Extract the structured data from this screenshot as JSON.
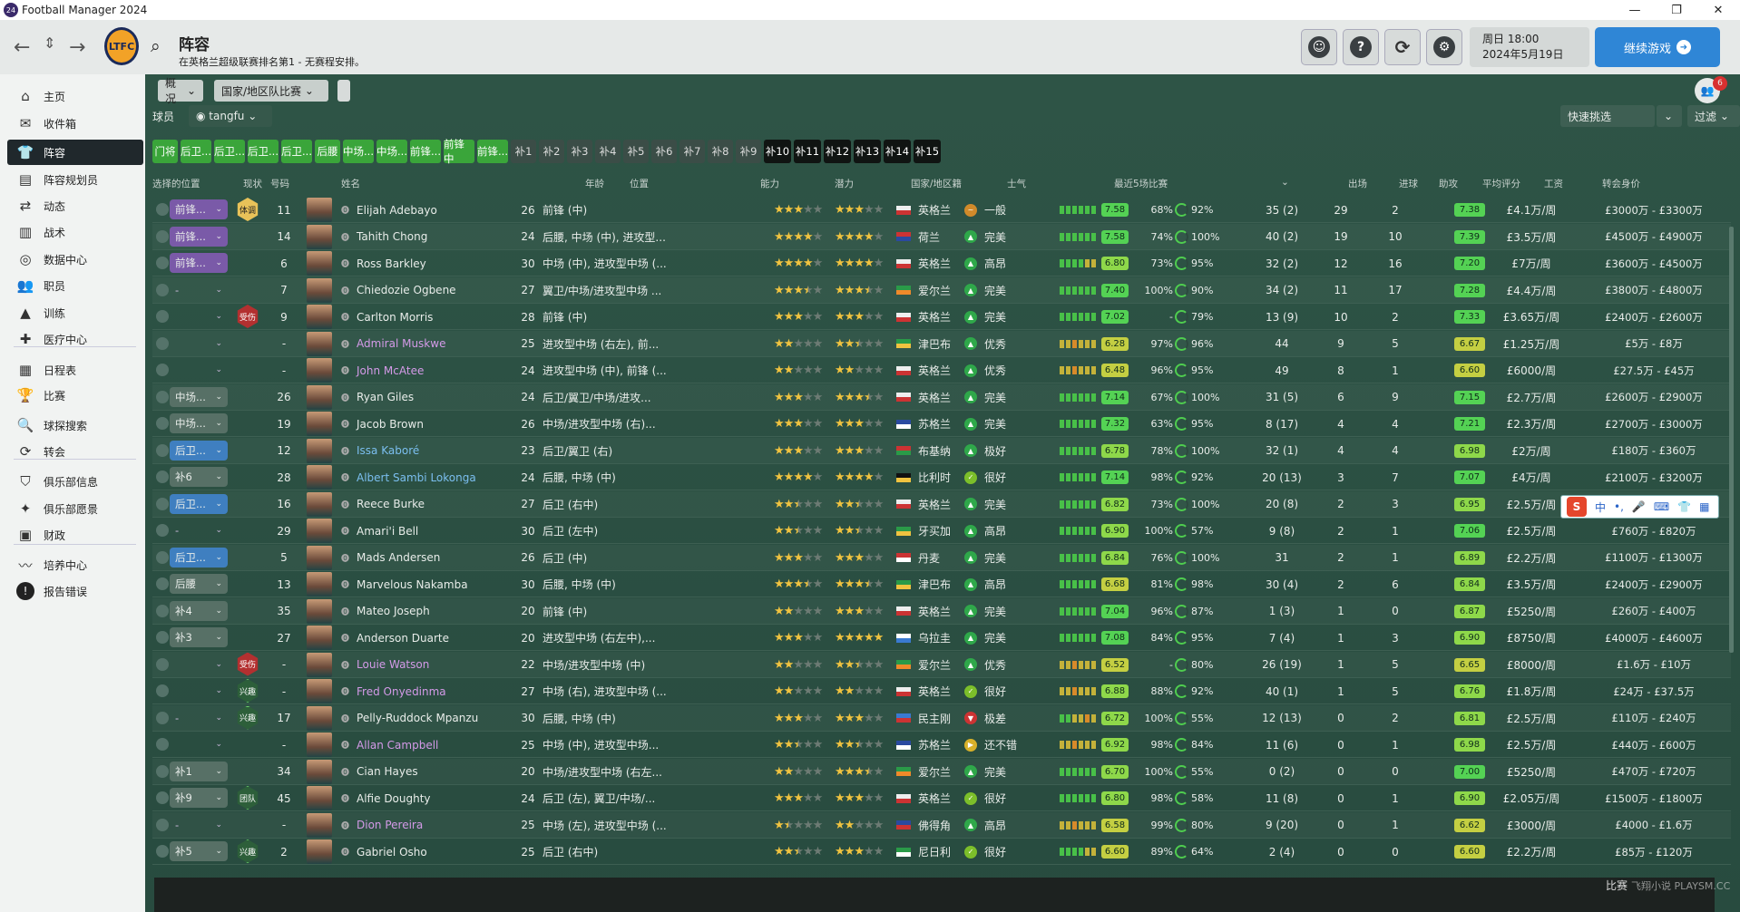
{
  "window": {
    "title": "Football Manager 2024",
    "logo": "24"
  },
  "header": {
    "title": "阵容",
    "subtitle": "在英格兰超级联赛排名第1 - 无赛程安排。",
    "day_time": "周日 18:00",
    "date": "2024年5月19日",
    "continue_label": "继续游戏",
    "club_crest": "LTFC"
  },
  "sidebar": [
    {
      "label": "主页",
      "icon": "home-icon",
      "glyph": "⌂"
    },
    {
      "label": "收件箱",
      "icon": "inbox-icon",
      "glyph": "✉"
    },
    {
      "label": "阵容",
      "icon": "shirt-icon",
      "glyph": "👕"
    },
    {
      "label": "阵容规划员",
      "icon": "planner-icon",
      "glyph": "▤"
    },
    {
      "label": "动态",
      "icon": "dynamics-icon",
      "glyph": "⇄"
    },
    {
      "label": "战术",
      "icon": "tactics-icon",
      "glyph": "▥"
    },
    {
      "label": "数据中心",
      "icon": "data-hub-icon",
      "glyph": "◎"
    },
    {
      "label": "职员",
      "icon": "staff-icon",
      "glyph": "👥"
    },
    {
      "label": "训练",
      "icon": "training-icon",
      "glyph": "▲"
    },
    {
      "label": "医疗中心",
      "icon": "medical-icon",
      "glyph": "✚"
    },
    {
      "label": "日程表",
      "icon": "calendar-icon",
      "glyph": "▦"
    },
    {
      "label": "比赛",
      "icon": "trophy-icon",
      "glyph": "🏆"
    },
    {
      "label": "球探搜索",
      "icon": "scouting-icon",
      "glyph": "🔍"
    },
    {
      "label": "转会",
      "icon": "transfers-icon",
      "glyph": "⟳"
    },
    {
      "label": "俱乐部信息",
      "icon": "club-info-icon",
      "glyph": "⛉"
    },
    {
      "label": "俱乐部愿景",
      "icon": "club-vision-icon",
      "glyph": "✦"
    },
    {
      "label": "财政",
      "icon": "finance-icon",
      "glyph": "▣"
    },
    {
      "label": "培养中心",
      "icon": "development-icon",
      "glyph": "〰"
    },
    {
      "label": "报告错误",
      "icon": "report-bug-icon",
      "glyph": "!"
    }
  ],
  "toolbar": {
    "view": "概况",
    "competition": "国家/地区队比赛",
    "players_label": "球员",
    "user": "tangfu",
    "quick_pick": "快速挑选",
    "filter": "过滤",
    "notification_count": "6"
  },
  "filters": [
    {
      "label": "门将",
      "style": "g"
    },
    {
      "label": "后卫...",
      "style": "g"
    },
    {
      "label": "后卫...",
      "style": "g"
    },
    {
      "label": "后卫...",
      "style": "g"
    },
    {
      "label": "后卫...",
      "style": "g"
    },
    {
      "label": "后腰",
      "style": "g"
    },
    {
      "label": "中场...",
      "style": "g"
    },
    {
      "label": "中场...",
      "style": "g"
    },
    {
      "label": "前锋...",
      "style": "g"
    },
    {
      "label": "前锋中",
      "style": "g"
    },
    {
      "label": "前锋...",
      "style": "g"
    },
    {
      "label": "补1",
      "style": "d"
    },
    {
      "label": "补2",
      "style": "d"
    },
    {
      "label": "补3",
      "style": "d"
    },
    {
      "label": "补4",
      "style": "d"
    },
    {
      "label": "补5",
      "style": "d"
    },
    {
      "label": "补6",
      "style": "d"
    },
    {
      "label": "补7",
      "style": "d"
    },
    {
      "label": "补8",
      "style": "d"
    },
    {
      "label": "补9",
      "style": "d"
    },
    {
      "label": "补10",
      "style": "b"
    },
    {
      "label": "补11",
      "style": "b"
    },
    {
      "label": "补12",
      "style": "b"
    },
    {
      "label": "补13",
      "style": "b"
    },
    {
      "label": "补14",
      "style": "b"
    },
    {
      "label": "补15",
      "style": "b"
    }
  ],
  "columns": {
    "sel": "选择的位置",
    "status": "现状",
    "num": "号码",
    "name": "姓名",
    "age": "年龄",
    "position": "位置",
    "ability": "能力",
    "potential": "潜力",
    "nation": "国家/地区籍",
    "morale": "士气",
    "form": "最近5场比赛",
    "apps": "出场",
    "goals": "进球",
    "assists": "助攻",
    "avg": "平均评分",
    "wage": "工资",
    "value": "转会身价"
  },
  "players": [
    {
      "sel": "前锋...",
      "selc": "purple",
      "status": "体调",
      "stc": "fit",
      "num": "11",
      "name": "Elijah Adebayo",
      "nc": "",
      "age": "26",
      "pos": "前锋 (中)",
      "ab": 3,
      "pot": 3,
      "nat": "英格兰",
      "f1": "#eee",
      "f2": "#c33",
      "mor": "一般",
      "mc": "#d18a2a",
      "mi": "~",
      "form": "gggggg",
      "r": "7.58",
      "share": "68%",
      "pc": "92%",
      "apps": "35 (2)",
      "gls": "29",
      "ast": "2",
      "avg": "7.38",
      "wage": "£4.1万/周",
      "val": "£3000万 - £3300万"
    },
    {
      "sel": "前锋...",
      "selc": "purple",
      "status": "",
      "stc": "",
      "num": "14",
      "name": "Tahith Chong",
      "nc": "",
      "age": "24",
      "pos": "后腰, 中场 (中), 进攻型...",
      "ab": 4,
      "pot": 4,
      "nat": "荷兰",
      "f1": "#c33",
      "f2": "#2a4aa0",
      "mor": "完美",
      "mc": "#2fa84a",
      "mi": "▲",
      "form": "gggggg",
      "r": "7.58",
      "share": "74%",
      "pc": "100%",
      "apps": "40 (2)",
      "gls": "19",
      "ast": "10",
      "avg": "7.39",
      "wage": "£3.5万/周",
      "val": "£4500万 - £4900万"
    },
    {
      "sel": "前锋...",
      "selc": "purple",
      "status": "",
      "stc": "",
      "num": "6",
      "name": "Ross Barkley",
      "nc": "",
      "age": "30",
      "pos": "中场 (中), 进攻型中场 (...",
      "ab": 4,
      "pot": 4,
      "nat": "英格兰",
      "f1": "#eee",
      "f2": "#c33",
      "mor": "高昂",
      "mc": "#2fa84a",
      "mi": "▲",
      "form": "ggggyy",
      "r": "6.80",
      "share": "73%",
      "pc": "95%",
      "apps": "32 (2)",
      "gls": "12",
      "ast": "16",
      "avg": "7.20",
      "wage": "£7万/周",
      "val": "£3600万 - £4500万"
    },
    {
      "sel": "-",
      "selc": "none",
      "status": "",
      "stc": "",
      "num": "7",
      "name": "Chiedozie Ogbene",
      "nc": "",
      "age": "27",
      "pos": "翼卫/中场/进攻型中场 ...",
      "ab": 3.5,
      "pot": 3.5,
      "nat": "爱尔兰",
      "f1": "#2a9a48",
      "f2": "#f08a2a",
      "mor": "完美",
      "mc": "#2fa84a",
      "mi": "▲",
      "form": "gggggg",
      "r": "7.40",
      "share": "100%",
      "pc": "90%",
      "apps": "34 (2)",
      "gls": "11",
      "ast": "17",
      "avg": "7.28",
      "wage": "£4.4万/周",
      "val": "£3800万 - £4800万"
    },
    {
      "sel": "",
      "selc": "none",
      "status": "受伤",
      "stc": "inj",
      "num": "9",
      "name": "Carlton Morris",
      "nc": "",
      "age": "28",
      "pos": "前锋 (中)",
      "ab": 3,
      "pot": 3,
      "nat": "英格兰",
      "f1": "#eee",
      "f2": "#c33",
      "mor": "完美",
      "mc": "#2fa84a",
      "mi": "▲",
      "form": "gggggg",
      "r": "7.02",
      "share": "-",
      "pc": "79%",
      "apps": "13 (9)",
      "gls": "10",
      "ast": "2",
      "avg": "7.33",
      "wage": "£3.65万/周",
      "val": "£2400万 - £2600万"
    },
    {
      "sel": "",
      "selc": "none",
      "status": "",
      "stc": "",
      "num": "-",
      "name": "Admiral Muskwe",
      "nc": "loan",
      "age": "25",
      "pos": "进攻型中场 (右左), 前...",
      "ab": 2,
      "pot": 2.5,
      "nat": "津巴布",
      "f1": "#2a9a48",
      "f2": "#f0c340",
      "mor": "优秀",
      "mc": "#2fa84a",
      "mi": "▲",
      "form": "yyoyyy",
      "r": "6.28",
      "share": "97%",
      "pc": "96%",
      "apps": "44",
      "gls": "9",
      "ast": "5",
      "avg": "6.67",
      "wage": "£1.25万/周",
      "val": "£5万 - £8万"
    },
    {
      "sel": "",
      "selc": "none",
      "status": "",
      "stc": "",
      "num": "-",
      "name": "John McAtee",
      "nc": "loan",
      "age": "24",
      "pos": "进攻型中场 (中), 前锋 (...",
      "ab": 2,
      "pot": 2,
      "nat": "英格兰",
      "f1": "#eee",
      "f2": "#c33",
      "mor": "优秀",
      "mc": "#2fa84a",
      "mi": "▲",
      "form": "yyoyyy",
      "r": "6.48",
      "share": "96%",
      "pc": "95%",
      "apps": "49",
      "gls": "8",
      "ast": "1",
      "avg": "6.60",
      "wage": "£6000/周",
      "val": "£27.5万 - £45万"
    },
    {
      "sel": "中场...",
      "selc": "sub",
      "status": "",
      "stc": "",
      "num": "26",
      "name": "Ryan Giles",
      "nc": "",
      "age": "24",
      "pos": "后卫/翼卫/中场/进攻...",
      "ab": 3,
      "pot": 3.5,
      "nat": "英格兰",
      "f1": "#eee",
      "f2": "#c33",
      "mor": "完美",
      "mc": "#2fa84a",
      "mi": "▲",
      "form": "gggggg",
      "r": "7.14",
      "share": "67%",
      "pc": "100%",
      "apps": "31 (5)",
      "gls": "6",
      "ast": "9",
      "avg": "7.15",
      "wage": "£2.7万/周",
      "val": "£2600万 - £2900万"
    },
    {
      "sel": "中场...",
      "selc": "sub",
      "status": "",
      "stc": "",
      "num": "19",
      "name": "Jacob Brown",
      "nc": "",
      "age": "26",
      "pos": "中场/进攻型中场 (右)...",
      "ab": 3,
      "pot": 3,
      "nat": "苏格兰",
      "f1": "#2a4aa0",
      "f2": "#fff",
      "mor": "完美",
      "mc": "#2fa84a",
      "mi": "▲",
      "form": "gggggg",
      "r": "7.32",
      "share": "63%",
      "pc": "95%",
      "apps": "8 (17)",
      "gls": "4",
      "ast": "4",
      "avg": "7.21",
      "wage": "£2.3万/周",
      "val": "£2700万 - £3000万"
    },
    {
      "sel": "后卫...",
      "selc": "blue",
      "status": "",
      "stc": "",
      "num": "12",
      "name": "Issa Kaboré",
      "nc": "blue",
      "age": "23",
      "pos": "后卫/翼卫 (右)",
      "ab": 3,
      "pot": 3,
      "nat": "布基纳",
      "f1": "#c33",
      "f2": "#2a9a48",
      "mor": "极好",
      "mc": "#2fa84a",
      "mi": "▲",
      "form": "gggggg",
      "r": "6.78",
      "share": "78%",
      "pc": "100%",
      "apps": "32 (1)",
      "gls": "4",
      "ast": "4",
      "avg": "6.98",
      "wage": "£2万/周",
      "val": "£180万 - £360万"
    },
    {
      "sel": "补6",
      "selc": "sub",
      "status": "",
      "stc": "",
      "num": "28",
      "name": "Albert Sambi Lokonga",
      "nc": "blue",
      "age": "24",
      "pos": "后腰, 中场 (中)",
      "ab": 4,
      "pot": 4,
      "nat": "比利时",
      "f1": "#111",
      "f2": "#f0c340",
      "mor": "很好",
      "mc": "#7cbf2a",
      "mi": "✓",
      "form": "gggggg",
      "r": "7.14",
      "share": "98%",
      "pc": "92%",
      "apps": "20 (13)",
      "gls": "3",
      "ast": "7",
      "avg": "7.07",
      "wage": "£4万/周",
      "val": "£2100万 - £3200万"
    },
    {
      "sel": "后卫...",
      "selc": "blue",
      "status": "",
      "stc": "",
      "num": "16",
      "name": "Reece Burke",
      "nc": "",
      "age": "27",
      "pos": "后卫 (右中)",
      "ab": 2.5,
      "pot": 2.5,
      "nat": "英格兰",
      "f1": "#eee",
      "f2": "#c33",
      "mor": "完美",
      "mc": "#2fa84a",
      "mi": "▲",
      "form": "gggggg",
      "r": "6.82",
      "share": "73%",
      "pc": "100%",
      "apps": "20 (8)",
      "gls": "2",
      "ast": "3",
      "avg": "6.95",
      "wage": "£2.5万/周",
      "val": ""
    },
    {
      "sel": "-",
      "selc": "none",
      "status": "",
      "stc": "",
      "num": "29",
      "name": "Amari'i Bell",
      "nc": "",
      "age": "30",
      "pos": "后卫 (左中)",
      "ab": 2.5,
      "pot": 2.5,
      "nat": "牙买加",
      "f1": "#2a9a48",
      "f2": "#f0c340",
      "mor": "高昂",
      "mc": "#2fa84a",
      "mi": "▲",
      "form": "gggggg",
      "r": "6.90",
      "share": "100%",
      "pc": "57%",
      "apps": "9 (8)",
      "gls": "2",
      "ast": "1",
      "avg": "7.06",
      "wage": "£2.5万/周",
      "val": "£760万 - £820万"
    },
    {
      "sel": "后卫...",
      "selc": "blue",
      "status": "",
      "stc": "",
      "num": "5",
      "name": "Mads Andersen",
      "nc": "",
      "age": "26",
      "pos": "后卫 (中)",
      "ab": 3,
      "pot": 3,
      "nat": "丹麦",
      "f1": "#c33",
      "f2": "#fff",
      "mor": "完美",
      "mc": "#2fa84a",
      "mi": "▲",
      "form": "gggggg",
      "r": "6.84",
      "share": "76%",
      "pc": "100%",
      "apps": "31",
      "gls": "2",
      "ast": "1",
      "avg": "6.89",
      "wage": "£2.2万/周",
      "val": "£1100万 - £1300万"
    },
    {
      "sel": "后腰",
      "selc": "sub",
      "status": "",
      "stc": "",
      "num": "13",
      "name": "Marvelous Nakamba",
      "nc": "",
      "age": "30",
      "pos": "后腰, 中场 (中)",
      "ab": 3.5,
      "pot": 3.5,
      "nat": "津巴布",
      "f1": "#2a9a48",
      "f2": "#f0c340",
      "mor": "高昂",
      "mc": "#2fa84a",
      "mi": "▲",
      "form": "gggggg",
      "r": "6.68",
      "share": "81%",
      "pc": "98%",
      "apps": "30 (4)",
      "gls": "2",
      "ast": "6",
      "avg": "6.84",
      "wage": "£3.5万/周",
      "val": "£2400万 - £2900万"
    },
    {
      "sel": "补4",
      "selc": "sub",
      "status": "",
      "stc": "",
      "num": "35",
      "name": "Mateo Joseph",
      "nc": "",
      "age": "20",
      "pos": "前锋 (中)",
      "ab": 2,
      "pot": 3,
      "nat": "英格兰",
      "f1": "#eee",
      "f2": "#c33",
      "mor": "完美",
      "mc": "#2fa84a",
      "mi": "▲",
      "form": "gggggg",
      "r": "7.04",
      "share": "96%",
      "pc": "87%",
      "apps": "1 (3)",
      "gls": "1",
      "ast": "0",
      "avg": "6.87",
      "wage": "£5250/周",
      "val": "£260万 - £400万"
    },
    {
      "sel": "补3",
      "selc": "sub",
      "status": "",
      "stc": "",
      "num": "27",
      "name": "Anderson Duarte",
      "nc": "",
      "age": "20",
      "pos": "进攻型中场 (右左中),...",
      "ab": 3,
      "pot": 5,
      "nat": "乌拉圭",
      "f1": "#fff",
      "f2": "#3a7ad0",
      "mor": "完美",
      "mc": "#2fa84a",
      "mi": "▲",
      "form": "gggggg",
      "r": "7.08",
      "share": "84%",
      "pc": "95%",
      "apps": "7 (4)",
      "gls": "1",
      "ast": "3",
      "avg": "6.90",
      "wage": "£8750/周",
      "val": "£4000万 - £4600万"
    },
    {
      "sel": "",
      "selc": "none",
      "status": "受伤",
      "stc": "inj",
      "num": "-",
      "name": "Louie Watson",
      "nc": "loan",
      "age": "22",
      "pos": "中场/进攻型中场 (中)",
      "ab": 2,
      "pot": 2.5,
      "nat": "爱尔兰",
      "f1": "#2a9a48",
      "f2": "#f08a2a",
      "mor": "优秀",
      "mc": "#2fa84a",
      "mi": "▲",
      "form": "yyoyyy",
      "r": "6.52",
      "share": "-",
      "pc": "80%",
      "apps": "26 (19)",
      "gls": "1",
      "ast": "5",
      "avg": "6.65",
      "wage": "£8000/周",
      "val": "£1.6万 - £10万"
    },
    {
      "sel": "",
      "selc": "none",
      "status": "兴趣",
      "stc": "happy",
      "num": "-",
      "name": "Fred Onyedinma",
      "nc": "loan",
      "age": "27",
      "pos": "中场 (右), 进攻型中场 (...",
      "ab": 2,
      "pot": 2,
      "nat": "英格兰",
      "f1": "#eee",
      "f2": "#c33",
      "mor": "很好",
      "mc": "#7cbf2a",
      "mi": "✓",
      "form": "yyoyyy",
      "r": "6.88",
      "share": "88%",
      "pc": "92%",
      "apps": "40 (1)",
      "gls": "1",
      "ast": "5",
      "avg": "6.76",
      "wage": "£1.8万/周",
      "val": "£24万 - £37.5万"
    },
    {
      "sel": "-",
      "selc": "none",
      "status": "兴趣",
      "stc": "happy",
      "num": "17",
      "name": "Pelly-Ruddock Mpanzu",
      "nc": "",
      "age": "30",
      "pos": "后腰, 中场 (中)",
      "ab": 3,
      "pot": 3,
      "nat": "民主刚",
      "f1": "#3a7ad0",
      "f2": "#c33",
      "mor": "极差",
      "mc": "#c33",
      "mi": "▼",
      "form": "ggyyoy",
      "r": "6.72",
      "share": "100%",
      "pc": "55%",
      "apps": "12 (13)",
      "gls": "0",
      "ast": "2",
      "avg": "6.81",
      "wage": "£2.5万/周",
      "val": "£110万 - £240万"
    },
    {
      "sel": "",
      "selc": "none",
      "status": "",
      "stc": "",
      "num": "-",
      "name": "Allan Campbell",
      "nc": "loan",
      "age": "25",
      "pos": "中场 (中), 进攻型中场...",
      "ab": 2.5,
      "pot": 2.5,
      "nat": "苏格兰",
      "f1": "#2a4aa0",
      "f2": "#fff",
      "mor": "还不错",
      "mc": "#d8b12a",
      "mi": "▶",
      "form": "yyoyyy",
      "r": "6.92",
      "share": "98%",
      "pc": "84%",
      "apps": "11 (6)",
      "gls": "0",
      "ast": "1",
      "avg": "6.98",
      "wage": "£2.5万/周",
      "val": "£440万 - £600万"
    },
    {
      "sel": "补1",
      "selc": "sub",
      "status": "",
      "stc": "",
      "num": "34",
      "name": "Cian Hayes",
      "nc": "",
      "age": "20",
      "pos": "中场/进攻型中场 (右左...",
      "ab": 2,
      "pot": 3.5,
      "nat": "爱尔兰",
      "f1": "#2a9a48",
      "f2": "#f08a2a",
      "mor": "完美",
      "mc": "#2fa84a",
      "mi": "▲",
      "form": "gggggg",
      "r": "6.70",
      "share": "100%",
      "pc": "55%",
      "apps": "0 (2)",
      "gls": "0",
      "ast": "0",
      "avg": "7.00",
      "wage": "£5250/周",
      "val": "£470万 - £720万"
    },
    {
      "sel": "补9",
      "selc": "sub",
      "status": "团队",
      "stc": "happy",
      "num": "45",
      "name": "Alfie Doughty",
      "nc": "",
      "age": "24",
      "pos": "后卫 (左), 翼卫/中场/...",
      "ab": 3,
      "pot": 3,
      "nat": "英格兰",
      "f1": "#eee",
      "f2": "#c33",
      "mor": "很好",
      "mc": "#7cbf2a",
      "mi": "✓",
      "form": "gggggg",
      "r": "6.80",
      "share": "98%",
      "pc": "58%",
      "apps": "11 (8)",
      "gls": "0",
      "ast": "1",
      "avg": "6.90",
      "wage": "£2.05万/周",
      "val": "£1500万 - £1800万"
    },
    {
      "sel": "-",
      "selc": "none",
      "status": "",
      "stc": "",
      "num": "-",
      "name": "Dion Pereira",
      "nc": "loan",
      "age": "25",
      "pos": "中场 (左), 进攻型中场 (...",
      "ab": 1.5,
      "pot": 2,
      "nat": "佛得角",
      "f1": "#2a4aa0",
      "f2": "#c33",
      "mor": "高昂",
      "mc": "#2fa84a",
      "mi": "▲",
      "form": "yyoyyy",
      "r": "6.58",
      "share": "99%",
      "pc": "80%",
      "apps": "9 (20)",
      "gls": "0",
      "ast": "1",
      "avg": "6.62",
      "wage": "£3000/周",
      "val": "£4000 - £1.6万"
    },
    {
      "sel": "补5",
      "selc": "sub",
      "status": "兴趣",
      "stc": "happy",
      "num": "2",
      "name": "Gabriel Osho",
      "nc": "",
      "age": "25",
      "pos": "后卫 (右中)",
      "ab": 2.5,
      "pot": 3,
      "nat": "尼日利",
      "f1": "#2a9a48",
      "f2": "#fff",
      "mor": "很好",
      "mc": "#7cbf2a",
      "mi": "✓",
      "form": "ggggyy",
      "r": "6.60",
      "share": "89%",
      "pc": "64%",
      "apps": "2 (4)",
      "gls": "0",
      "ast": "0",
      "avg": "6.60",
      "wage": "£2.2万/周",
      "val": "£85万 - £120万"
    }
  ],
  "ime": {
    "brand": "S",
    "mode": "中"
  },
  "bottom": {
    "match_label": "比赛"
  },
  "watermark": "飞翔小说 PLAYSM.CC"
}
